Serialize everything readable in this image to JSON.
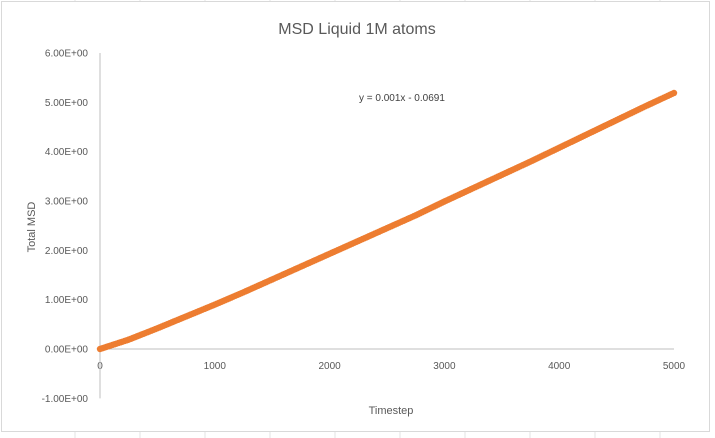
{
  "chart_data": {
    "type": "scatter",
    "title": "MSD Liquid 1M atoms",
    "xlabel": "Timestep",
    "ylabel": "Total MSD",
    "xlim": [
      0,
      5000
    ],
    "ylim": [
      -1,
      6
    ],
    "x_ticks": [
      "0",
      "1000",
      "2000",
      "3000",
      "4000",
      "5000"
    ],
    "y_ticks": [
      "-1.00E+00",
      "0.00E+00",
      "1.00E+00",
      "2.00E+00",
      "3.00E+00",
      "4.00E+00",
      "5.00E+00",
      "6.00E+00"
    ],
    "grid": false,
    "legend": "none",
    "series": [
      {
        "color": "#ED7D31",
        "x": [
          0,
          250,
          500,
          750,
          1000,
          1250,
          1500,
          1750,
          2000,
          2250,
          2500,
          2750,
          3000,
          3250,
          3500,
          3750,
          4000,
          4250,
          4500,
          4750,
          5000
        ],
        "y": [
          0.0,
          0.19,
          0.42,
          0.66,
          0.9,
          1.15,
          1.41,
          1.67,
          1.93,
          2.19,
          2.45,
          2.71,
          2.99,
          3.26,
          3.53,
          3.8,
          4.08,
          4.36,
          4.64,
          4.92,
          5.19
        ]
      }
    ],
    "trendline": {
      "equation": "y = 0.001x - 0.0691"
    }
  }
}
